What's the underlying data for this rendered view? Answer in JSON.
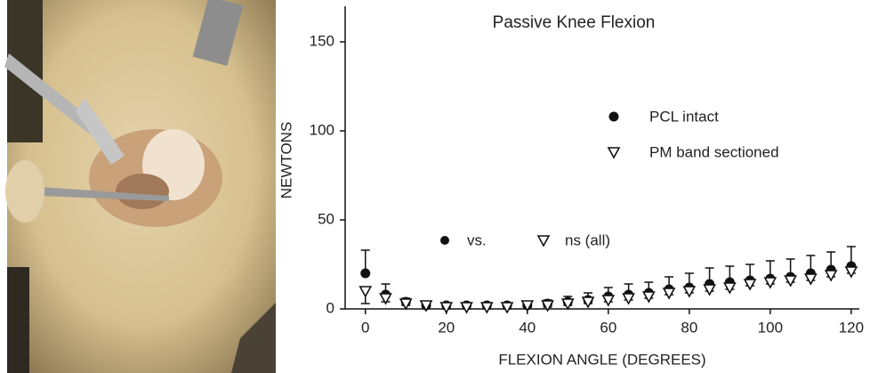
{
  "chart_data": {
    "type": "scatter",
    "title": "Passive Knee Flexion",
    "x_label": "FLEXION ANGLE (DEGREES)",
    "y_label": "NEWTONS",
    "x": [
      0,
      5,
      10,
      15,
      20,
      25,
      30,
      35,
      40,
      45,
      50,
      55,
      60,
      65,
      70,
      75,
      80,
      85,
      90,
      95,
      100,
      105,
      110,
      115,
      120
    ],
    "series": [
      {
        "name": "PCL intact",
        "color": "#111111",
        "marker": "circle",
        "values": [
          20,
          8,
          4,
          2,
          2,
          2,
          2,
          2,
          2,
          3,
          4,
          5,
          7,
          8,
          9,
          11,
          12,
          14,
          15,
          16,
          17,
          18,
          20,
          22,
          24
        ],
        "errors": [
          13,
          6,
          2,
          1,
          1,
          1,
          1,
          1,
          1,
          2,
          3,
          4,
          5,
          6,
          6,
          7,
          8,
          9,
          9,
          9,
          10,
          10,
          10,
          10,
          11
        ]
      },
      {
        "name": "PM band sectioned",
        "color": "#111111",
        "marker": "triangle",
        "values": [
          10,
          6,
          3,
          2,
          1,
          1,
          1,
          1,
          2,
          2,
          3,
          4,
          5,
          6,
          7,
          9,
          10,
          11,
          12,
          14,
          15,
          16,
          17,
          19,
          21
        ],
        "errors": [
          7,
          2,
          1,
          1,
          1,
          1,
          1,
          1,
          1,
          1,
          1,
          1,
          1,
          1,
          1,
          1,
          1,
          1,
          1,
          1,
          1,
          1,
          1,
          1,
          1
        ]
      }
    ],
    "annotations": [
      "vs.",
      "ns (all)"
    ],
    "xlim": [
      -5,
      122
    ],
    "ylim": [
      0,
      170
    ],
    "xticks": [
      0,
      20,
      40,
      60,
      80,
      100,
      120
    ],
    "yticks": [
      0,
      50,
      100,
      150
    ]
  }
}
